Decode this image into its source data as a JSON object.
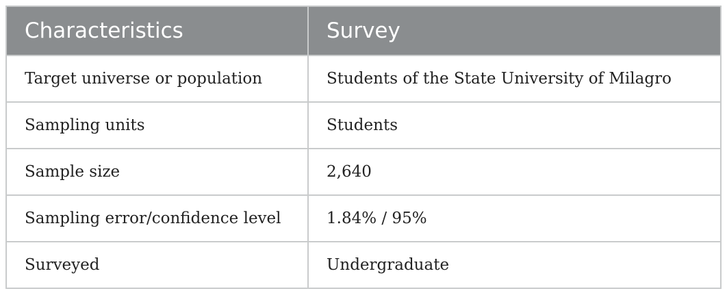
{
  "table": {
    "header": [
      "Characteristics",
      "Survey"
    ],
    "rows": [
      [
        "Target universe or population",
        "Students of the State University of Milagro"
      ],
      [
        "Sampling units",
        "Students"
      ],
      [
        "Sample size",
        "2,640"
      ],
      [
        "Sampling error/confidence level",
        "1.84% / 95%"
      ],
      [
        "Surveyed",
        "Undergraduate"
      ]
    ]
  }
}
